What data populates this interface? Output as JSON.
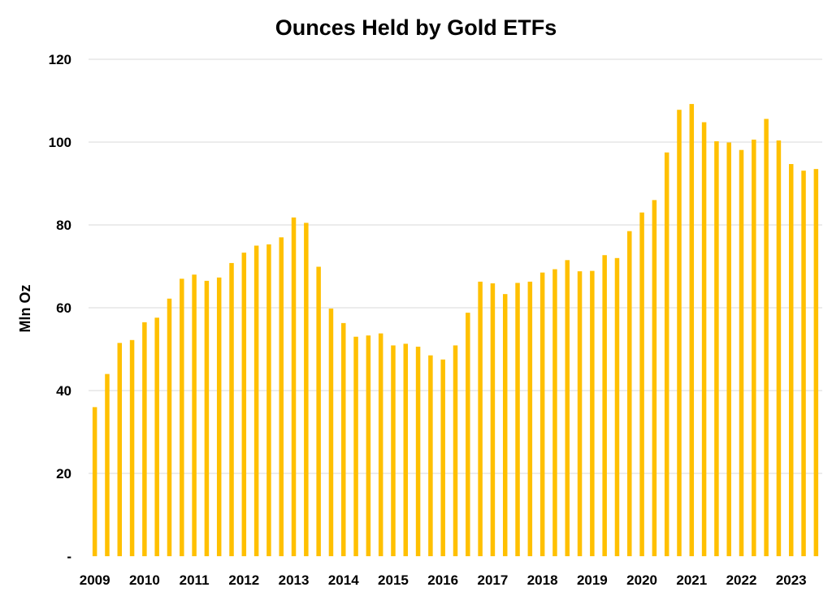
{
  "chart_data": {
    "type": "bar",
    "title": "Ounces Held by Gold ETFs",
    "xlabel": "",
    "ylabel": "Mln Oz",
    "ylim": [
      0,
      120
    ],
    "y_ticks": [
      {
        "value": 0,
        "label": "-"
      },
      {
        "value": 20,
        "label": "20"
      },
      {
        "value": 40,
        "label": "40"
      },
      {
        "value": 60,
        "label": "60"
      },
      {
        "value": 80,
        "label": "80"
      },
      {
        "value": 100,
        "label": "100"
      },
      {
        "value": 120,
        "label": "120"
      }
    ],
    "x_tick_labels": [
      {
        "index": 0,
        "label": "2009"
      },
      {
        "index": 4,
        "label": "2010"
      },
      {
        "index": 8,
        "label": "2011"
      },
      {
        "index": 12,
        "label": "2012"
      },
      {
        "index": 16,
        "label": "2013"
      },
      {
        "index": 20,
        "label": "2014"
      },
      {
        "index": 24,
        "label": "2015"
      },
      {
        "index": 28,
        "label": "2016"
      },
      {
        "index": 32,
        "label": "2017"
      },
      {
        "index": 36,
        "label": "2018"
      },
      {
        "index": 40,
        "label": "2019"
      },
      {
        "index": 44,
        "label": "2020"
      },
      {
        "index": 48,
        "label": "2021"
      },
      {
        "index": 52,
        "label": "2022"
      },
      {
        "index": 56,
        "label": "2023"
      }
    ],
    "grid": true,
    "bar_color": "#FFC000",
    "gridline_color": "#D9D9D9",
    "values": [
      36,
      44,
      51.5,
      52.2,
      56.5,
      57.6,
      62.2,
      67,
      68,
      66.5,
      67.3,
      70.8,
      73.3,
      75,
      75.3,
      77,
      81.8,
      80.5,
      69.9,
      59.8,
      56.3,
      53,
      53.3,
      53.8,
      50.9,
      51.3,
      50.6,
      48.5,
      47.5,
      50.9,
      58.8,
      66.3,
      65.9,
      63.3,
      66,
      66.3,
      68.5,
      69.3,
      71.5,
      68.8,
      68.9,
      72.7,
      72,
      78.5,
      83,
      86,
      97.5,
      107.8,
      109.2,
      104.8,
      100.2,
      99.9,
      98.1,
      100.6,
      105.6,
      100.4,
      94.7,
      93.1,
      93.5
    ]
  }
}
